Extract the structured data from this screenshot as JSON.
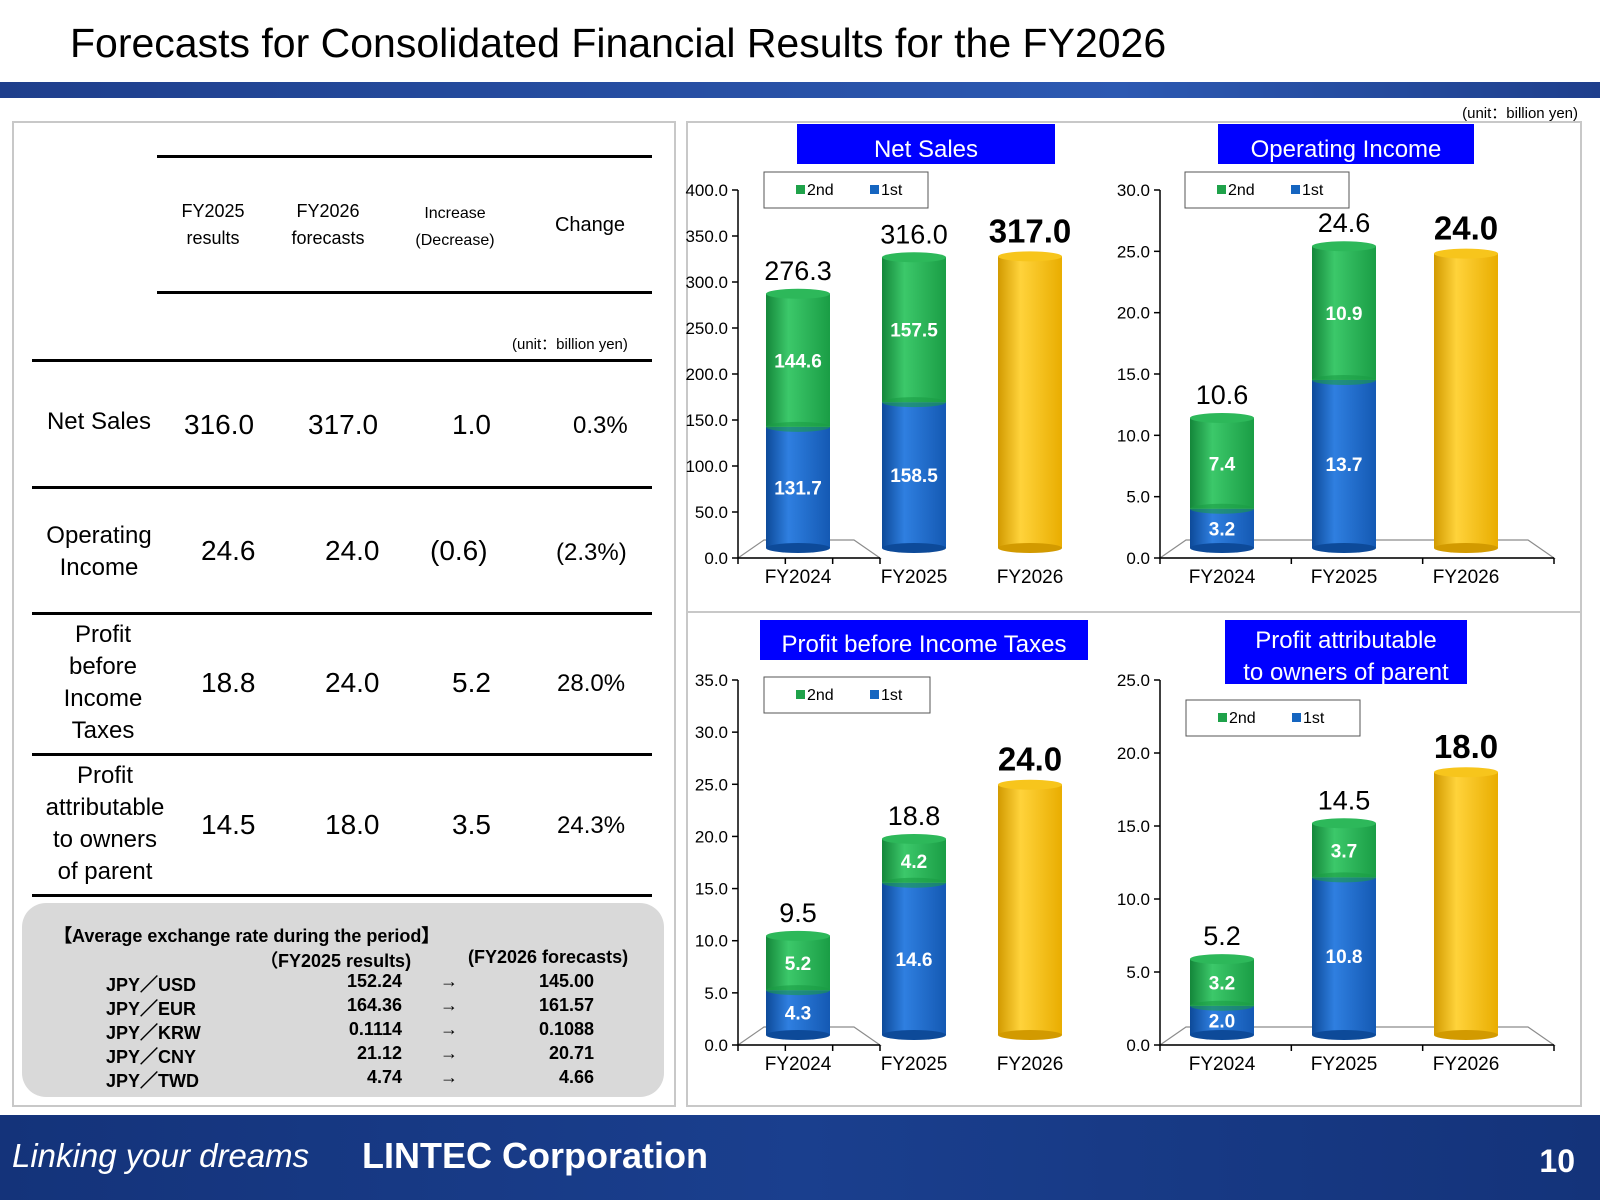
{
  "page": {
    "title": "Forecasts for Consolidated Financial Results for the FY2026",
    "unit_top": "(unit：billion yen)",
    "slogan": "Linking your dreams",
    "corp": "LINTEC Corporation",
    "page_number": "10"
  },
  "table": {
    "headers": {
      "fy2025_l1": "FY2025",
      "fy2025_l2": "results",
      "fy2026_l1": "FY2026",
      "fy2026_l2": "forecasts",
      "inc_l1": "Increase",
      "inc_l2": "(Decrease)",
      "change": "Change"
    },
    "unit": "(unit：billion yen)",
    "rows": [
      {
        "label": [
          "Net Sales"
        ],
        "fy2025": "316.0",
        "fy2026": "317.0",
        "inc": "1.0",
        "change": "0.3%"
      },
      {
        "label": [
          "Operating",
          "Income"
        ],
        "fy2025": "24.6",
        "fy2026": "24.0",
        "inc": "(0.6)",
        "change": "(2.3%)"
      },
      {
        "label": [
          "Profit",
          "before",
          "Income",
          "Taxes"
        ],
        "fy2025": "18.8",
        "fy2026": "24.0",
        "inc": "5.2",
        "change": "28.0%"
      },
      {
        "label": [
          "Profit",
          "attributable",
          "to owners",
          "of parent"
        ],
        "fy2025": "14.5",
        "fy2026": "18.0",
        "inc": "3.5",
        "change": "24.3%"
      }
    ]
  },
  "fx": {
    "title": "【Average exchange rate during the period】",
    "col1": "（FY2025 results)",
    "col2": "(FY2026 forecasts)",
    "arrow": "→",
    "rows": [
      {
        "pair": "JPY／USD",
        "a": "152.24",
        "b": "145.00"
      },
      {
        "pair": "JPY／EUR",
        "a": "164.36",
        "b": "161.57"
      },
      {
        "pair": "JPY／KRW",
        "a": "0.1114",
        "b": "0.1088"
      },
      {
        "pair": "JPY／CNY",
        "a": "21.12",
        "b": "20.71"
      },
      {
        "pair": "JPY／TWD",
        "a": "4.74",
        "b": "4.66"
      }
    ]
  },
  "colors": {
    "first": "#1565c0",
    "second": "#1fa24a",
    "forecast": "#f2b705",
    "title_bg": "#0000ff"
  },
  "chart_data": [
    {
      "type": "bar",
      "title": [
        "Net Sales"
      ],
      "categories": [
        "FY2024",
        "FY2025",
        "FY2026"
      ],
      "legend": [
        "2nd",
        "1st"
      ],
      "series": [
        {
          "name": "1st",
          "values": [
            131.7,
            158.5,
            null
          ]
        },
        {
          "name": "2nd",
          "values": [
            144.6,
            157.5,
            null
          ]
        },
        {
          "name": "FY2026",
          "values": [
            null,
            null,
            317.0
          ]
        }
      ],
      "totals": [
        "276.3",
        "316.0",
        "317.0"
      ],
      "first_labels": [
        "131.7",
        "158.5",
        ""
      ],
      "second_labels": [
        "144.6",
        "157.5",
        ""
      ],
      "ylim": [
        0,
        400
      ],
      "yticks": [
        "0.0",
        "50.0",
        "100.0",
        "150.0",
        "200.0",
        "250.0",
        "300.0",
        "350.0",
        "400.0"
      ]
    },
    {
      "type": "bar",
      "title": [
        "Operating Income"
      ],
      "categories": [
        "FY2024",
        "FY2025",
        "FY2026"
      ],
      "legend": [
        "2nd",
        "1st"
      ],
      "series": [
        {
          "name": "1st",
          "values": [
            3.2,
            13.7,
            null
          ]
        },
        {
          "name": "2nd",
          "values": [
            7.4,
            10.9,
            null
          ]
        },
        {
          "name": "FY2026",
          "values": [
            null,
            null,
            24.0
          ]
        }
      ],
      "totals": [
        "10.6",
        "24.6",
        "24.0"
      ],
      "first_labels": [
        "3.2",
        "13.7",
        ""
      ],
      "second_labels": [
        "7.4",
        "10.9",
        ""
      ],
      "ylim": [
        0,
        30
      ],
      "yticks": [
        "0.0",
        "5.0",
        "10.0",
        "15.0",
        "20.0",
        "25.0",
        "30.0"
      ]
    },
    {
      "type": "bar",
      "title": [
        "Profit before Income Taxes"
      ],
      "categories": [
        "FY2024",
        "FY2025",
        "FY2026"
      ],
      "legend": [
        "2nd",
        "1st"
      ],
      "series": [
        {
          "name": "1st",
          "values": [
            4.3,
            14.6,
            null
          ]
        },
        {
          "name": "2nd",
          "values": [
            5.2,
            4.2,
            null
          ]
        },
        {
          "name": "FY2026",
          "values": [
            null,
            null,
            24.0
          ]
        }
      ],
      "totals": [
        "9.5",
        "18.8",
        "24.0"
      ],
      "first_labels": [
        "4.3",
        "14.6",
        ""
      ],
      "second_labels": [
        "5.2",
        "4.2",
        ""
      ],
      "ylim": [
        0,
        35
      ],
      "yticks": [
        "0.0",
        "5.0",
        "10.0",
        "15.0",
        "20.0",
        "25.0",
        "30.0",
        "35.0"
      ]
    },
    {
      "type": "bar",
      "title": [
        "Profit attributable",
        "to owners of parent"
      ],
      "categories": [
        "FY2024",
        "FY2025",
        "FY2026"
      ],
      "legend": [
        "2nd",
        "1st"
      ],
      "series": [
        {
          "name": "1st",
          "values": [
            2.0,
            10.8,
            null
          ]
        },
        {
          "name": "2nd",
          "values": [
            3.2,
            3.7,
            null
          ]
        },
        {
          "name": "FY2026",
          "values": [
            null,
            null,
            18.0
          ]
        }
      ],
      "totals": [
        "5.2",
        "14.5",
        "18.0"
      ],
      "first_labels": [
        "2.0",
        "10.8",
        ""
      ],
      "second_labels": [
        "3.2",
        "3.7",
        ""
      ],
      "ylim": [
        0,
        25
      ],
      "yticks": [
        "0.0",
        "5.0",
        "10.0",
        "15.0",
        "20.0",
        "25.0"
      ]
    }
  ]
}
